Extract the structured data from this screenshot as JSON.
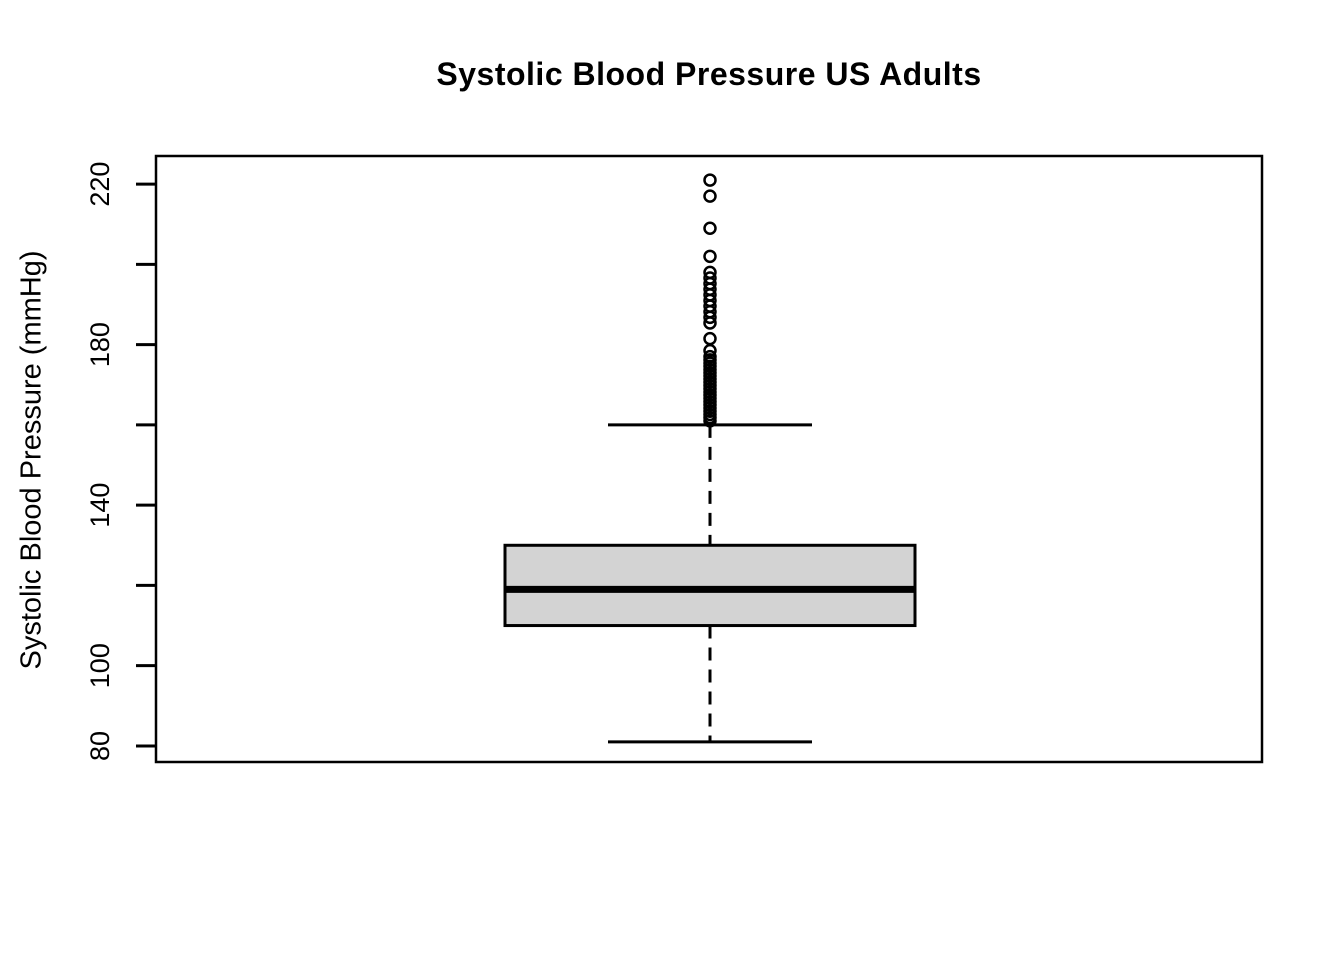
{
  "chart_data": {
    "type": "boxplot",
    "title": "Systolic Blood Pressure US Adults",
    "ylabel": "Systolic Blood Pressure (mmHg)",
    "xlabel": "",
    "orientation": "vertical",
    "grid": false,
    "series": [
      {
        "name": "Systolic Blood Pressure",
        "stats": {
          "lower_whisker": 81,
          "q1": 110,
          "median": 119,
          "q3": 130,
          "upper_whisker": 160
        },
        "outliers": [
          221,
          217,
          209,
          202,
          198,
          196.6,
          195.2,
          193.8,
          192.4,
          191,
          189.6,
          188.2,
          186.8,
          185.4,
          181.5,
          178.5,
          177,
          176.2,
          175.4,
          174.6,
          173.8,
          173,
          172.2,
          171.4,
          170.6,
          169.8,
          169,
          168.2,
          167.4,
          166.6,
          165.8,
          165,
          164.2,
          163.4,
          162.6,
          161.8,
          161
        ]
      }
    ],
    "y_axis": {
      "range": [
        76,
        227
      ],
      "ticks": [
        80,
        100,
        120,
        140,
        160,
        180,
        200,
        220
      ],
      "labeled_ticks": [
        80,
        100,
        140,
        180,
        220
      ]
    },
    "colors": {
      "box_fill": "#d3d3d3",
      "line": "#000000",
      "background": "#ffffff"
    }
  }
}
